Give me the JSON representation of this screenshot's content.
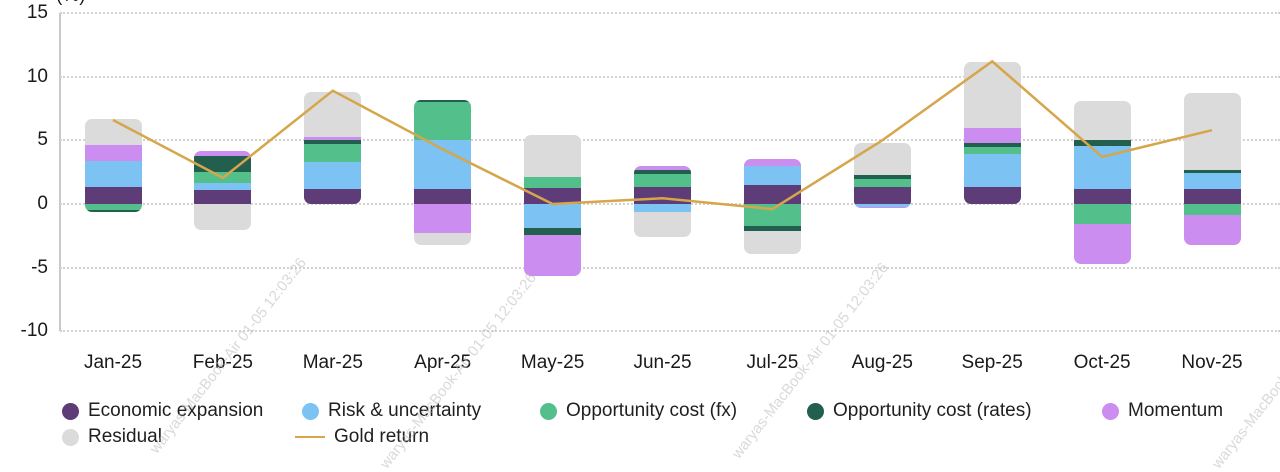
{
  "watermark": {
    "text": "waryas-MacBook-Air 01-05 12:03:26"
  },
  "chart_data": {
    "type": "bar",
    "stacked": true,
    "title": "",
    "ylabel": "(%)",
    "xlabel": "",
    "ylim": [
      -10,
      15
    ],
    "yticks": [
      "15",
      "10",
      "5",
      "0",
      "-5",
      "-10"
    ],
    "ytick_values": [
      15,
      10,
      5,
      0,
      -5,
      -10
    ],
    "grid": "dotted horizontal",
    "legend_position": "bottom",
    "categories": [
      "Jan-25",
      "Feb-25",
      "Mar-25",
      "Apr-25",
      "May-25",
      "Jun-25",
      "Jul-25",
      "Aug-25",
      "Sep-25",
      "Oct-25",
      "Nov-25"
    ],
    "series": [
      {
        "name": "Economic expansion",
        "color": "#5D3C78",
        "values": [
          1.3,
          1.1,
          1.2,
          1.2,
          1.25,
          1.35,
          1.5,
          1.35,
          1.3,
          1.2,
          1.2
        ]
      },
      {
        "name": "Risk & uncertainty",
        "color": "#7CC3F4",
        "values": [
          2.1,
          0.55,
          2.1,
          3.8,
          -1.9,
          -0.65,
          1.45,
          -0.2,
          2.6,
          3.35,
          1.2
        ]
      },
      {
        "name": "Opportunity cost (fx)",
        "color": "#53C08C",
        "values": [
          -0.45,
          0.9,
          1.4,
          3.0,
          0.9,
          1.0,
          -1.75,
          0.65,
          0.6,
          -1.6,
          -0.85
        ]
      },
      {
        "name": "Opportunity cost (rates)",
        "color": "#235F4E",
        "values": [
          -0.15,
          1.25,
          0.3,
          0.15,
          -0.55,
          0.35,
          -0.35,
          0.3,
          0.3,
          0.45,
          0.3
        ]
      },
      {
        "name": "Momentum",
        "color": "#CB8DEF",
        "values": [
          1.2,
          0.35,
          0.3,
          -2.3,
          -3.2,
          0.25,
          0.6,
          -0.15,
          1.15,
          -3.1,
          -2.35
        ]
      },
      {
        "name": "Residual",
        "color": "#DBDBDB",
        "values": [
          2.1,
          -2.05,
          3.5,
          -0.95,
          3.25,
          -1.95,
          -1.85,
          2.5,
          5.2,
          3.1,
          6.05
        ]
      }
    ],
    "line": {
      "name": "Gold return",
      "color": "#D5A64A",
      "values": [
        6.6,
        2.05,
        8.9,
        4.3,
        0.0,
        0.45,
        -0.4,
        5.0,
        11.2,
        3.7,
        5.8
      ]
    }
  }
}
